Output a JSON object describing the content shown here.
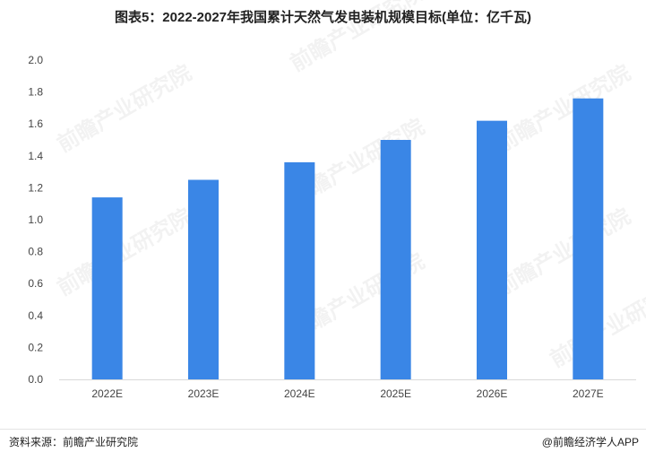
{
  "title": "图表5：2022-2027年我国累计天然气发电装机规模目标(单位：亿千瓦)",
  "footer": {
    "source": "资料来源：前瞻产业研究院",
    "brand": "@前瞻经济学人APP"
  },
  "watermark": "前瞻产业研究院",
  "colors": {
    "bar": "#3a86e6",
    "axis": "#d9d9d9"
  },
  "chart_data": {
    "type": "bar",
    "title": "图表5：2022-2027年我国累计天然气发电装机规模目标(单位：亿千瓦)",
    "xlabel": "",
    "ylabel": "",
    "categories": [
      "2022E",
      "2023E",
      "2024E",
      "2025E",
      "2026E",
      "2027E"
    ],
    "values": [
      1.14,
      1.25,
      1.36,
      1.5,
      1.62,
      1.76
    ],
    "ylim": [
      0,
      2.0
    ],
    "yticks": [
      "0.0",
      "0.2",
      "0.4",
      "0.6",
      "0.8",
      "1.0",
      "1.2",
      "1.4",
      "1.6",
      "1.8",
      "2.0"
    ],
    "grid": false,
    "legend": "none"
  }
}
